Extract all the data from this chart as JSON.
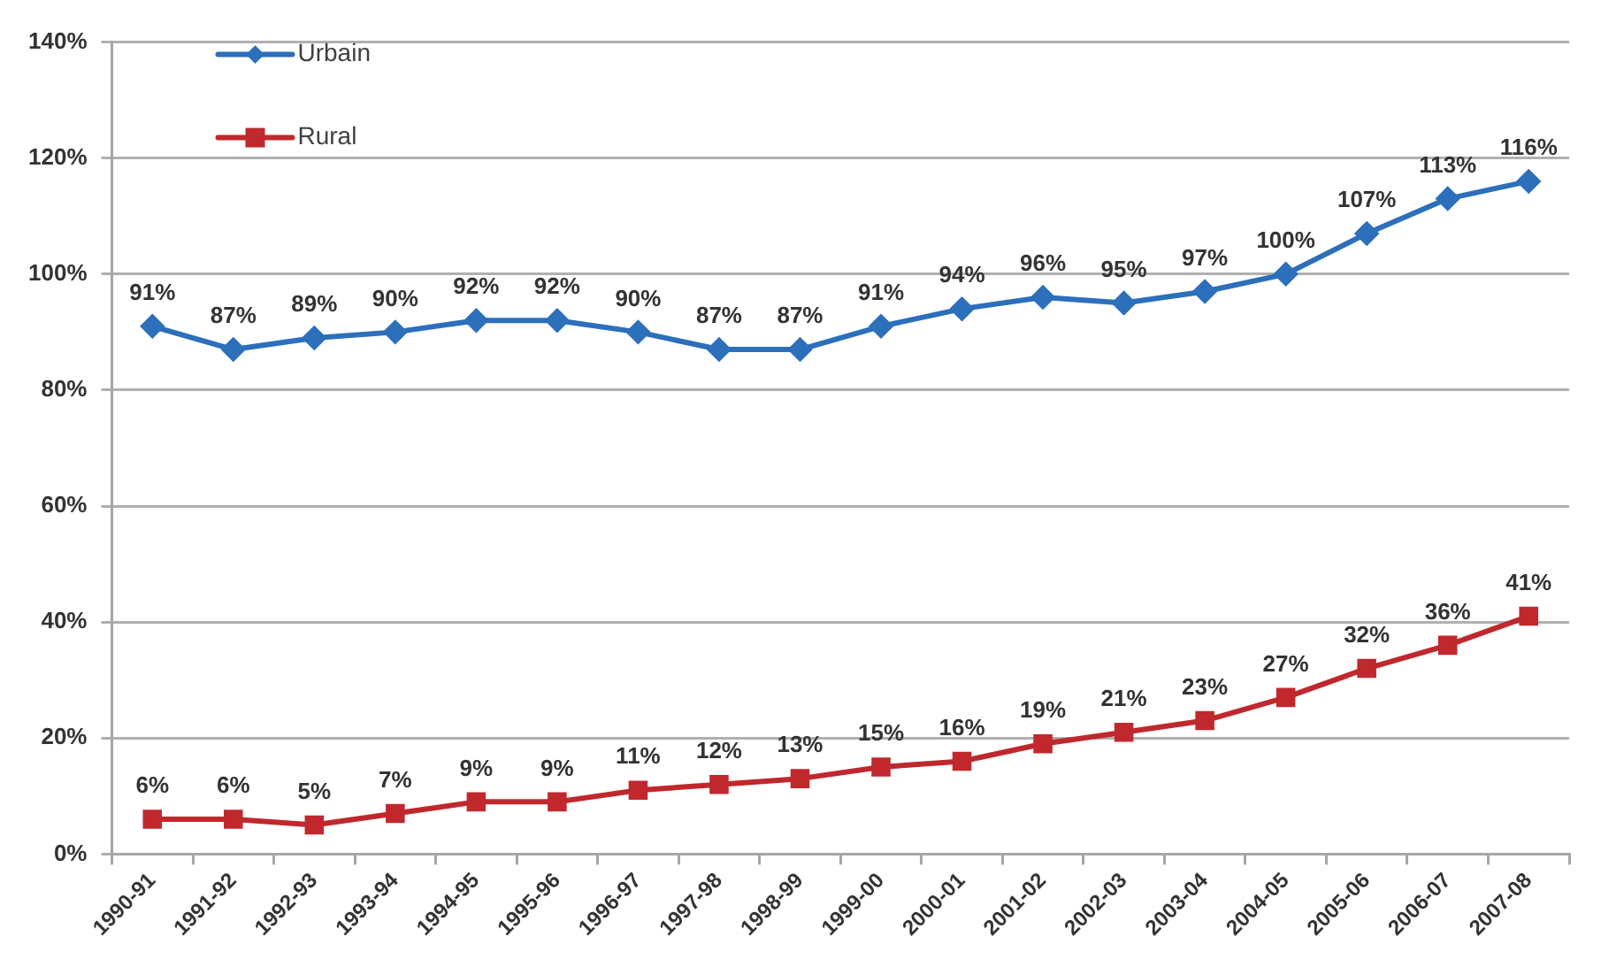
{
  "chart_data": {
    "type": "line",
    "categories": [
      "1990-91",
      "1991-92",
      "1992-93",
      "1993-94",
      "1994-95",
      "1995-96",
      "1996-97",
      "1997-98",
      "1998-99",
      "1999-00",
      "2000-01",
      "2001-02",
      "2002-03",
      "2003-04",
      "2004-05",
      "2005-06",
      "2006-07",
      "2007-08"
    ],
    "series": [
      {
        "name": "Urbain",
        "color": "#2c6fbb",
        "marker": "diamond",
        "values": [
          91,
          87,
          89,
          90,
          92,
          92,
          90,
          87,
          87,
          91,
          94,
          96,
          95,
          97,
          100,
          107,
          113,
          116
        ],
        "value_labels": [
          "91%",
          "87%",
          "89%",
          "90%",
          "92%",
          "92%",
          "90%",
          "87%",
          "87%",
          "91%",
          "94%",
          "96%",
          "95%",
          "97%",
          "100%",
          "107%",
          "113%",
          "116%"
        ]
      },
      {
        "name": "Rural",
        "color": "#c0282d",
        "marker": "square",
        "values": [
          6,
          6,
          5,
          7,
          9,
          9,
          11,
          12,
          13,
          15,
          16,
          19,
          21,
          23,
          27,
          32,
          36,
          41
        ],
        "value_labels": [
          "6%",
          "6%",
          "5%",
          "7%",
          "9%",
          "9%",
          "11%",
          "12%",
          "13%",
          "15%",
          "16%",
          "19%",
          "21%",
          "23%",
          "27%",
          "32%",
          "36%",
          "41%"
        ]
      }
    ],
    "ylim": [
      0,
      140
    ],
    "yticks": [
      {
        "value": 0,
        "label": "0%"
      },
      {
        "value": 20,
        "label": "20%"
      },
      {
        "value": 40,
        "label": "40%"
      },
      {
        "value": 60,
        "label": "60%"
      },
      {
        "value": 80,
        "label": "80%"
      },
      {
        "value": 100,
        "label": "100%"
      },
      {
        "value": 120,
        "label": "120%"
      },
      {
        "value": 140,
        "label": "140%"
      }
    ],
    "grid": "y",
    "legend": "top left"
  }
}
